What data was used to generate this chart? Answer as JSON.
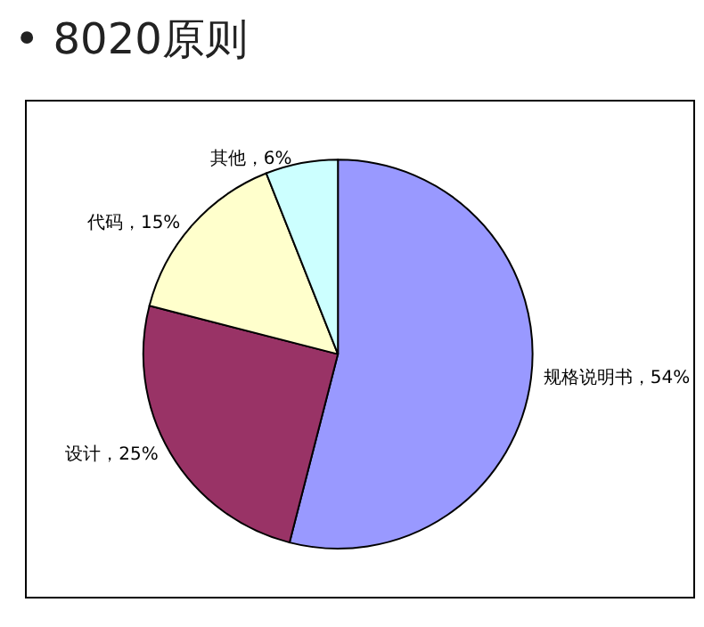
{
  "chart_data": {
    "type": "pie",
    "title": "• 8020原则",
    "categories": [
      "规格说明书",
      "设计",
      "代码",
      "其他"
    ],
    "values": [
      54,
      25,
      15,
      6
    ],
    "colors": [
      "#9999ff",
      "#993366",
      "#ffffcc",
      "#ccffff"
    ],
    "value_labels": [
      "54%",
      "25%",
      "15%",
      "6%"
    ],
    "legend": false
  }
}
